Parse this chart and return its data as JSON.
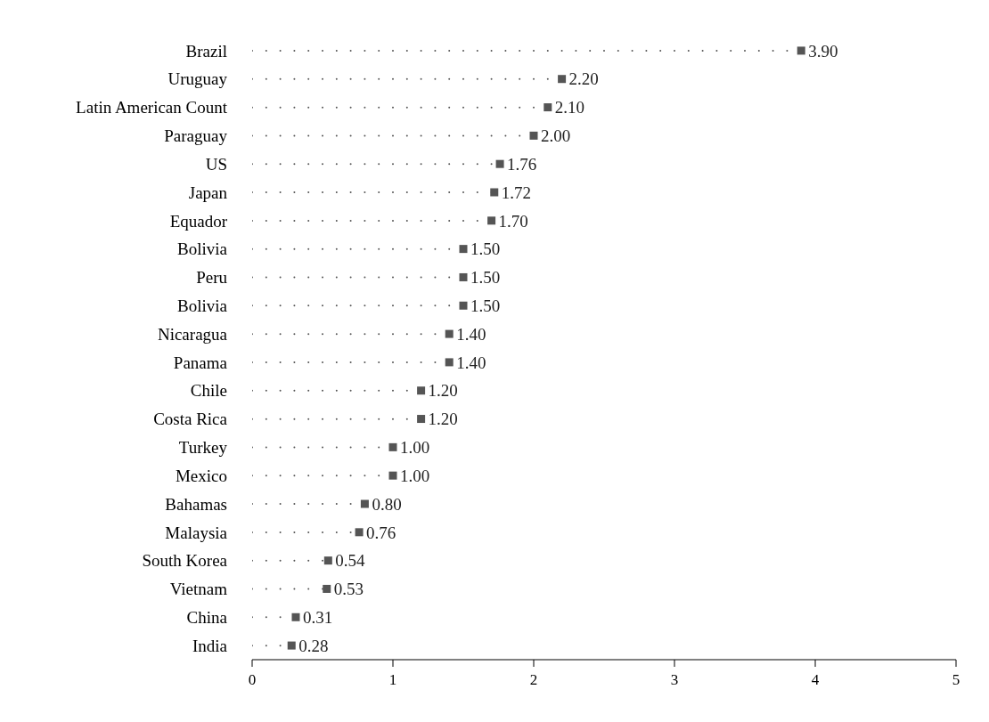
{
  "chart_data": {
    "type": "lollipop",
    "orientation": "horizontal",
    "categories": [
      "Brazil",
      "Uruguay",
      "Latin American Count",
      "Paraguay",
      "US",
      "Japan",
      "Equador",
      "Bolivia",
      "Peru",
      "Bolivia",
      "Nicaragua",
      "Panama",
      "Chile",
      "Costa Rica",
      "Turkey",
      "Mexico",
      "Bahamas",
      "Malaysia",
      "South Korea",
      "Vietnam",
      "China",
      "India"
    ],
    "values": [
      3.9,
      2.2,
      2.1,
      2.0,
      1.76,
      1.72,
      1.7,
      1.5,
      1.5,
      1.5,
      1.4,
      1.4,
      1.2,
      1.2,
      1.0,
      1.0,
      0.8,
      0.76,
      0.54,
      0.53,
      0.31,
      0.28
    ],
    "value_labels": [
      "3.90",
      "2.20",
      "2.10",
      "2.00",
      "1.76",
      "1.72",
      "1.70",
      "1.50",
      "1.50",
      "1.50",
      "1.40",
      "1.40",
      "1.20",
      "1.20",
      "1.00",
      "1.00",
      "0.80",
      "0.76",
      "0.54",
      "0.53",
      "0.31",
      "0.28"
    ],
    "color": "#555555",
    "marker": "square",
    "line_style": "dotted",
    "xlim": [
      0,
      5
    ],
    "xticks": [
      0,
      1,
      2,
      3,
      4,
      5
    ]
  }
}
